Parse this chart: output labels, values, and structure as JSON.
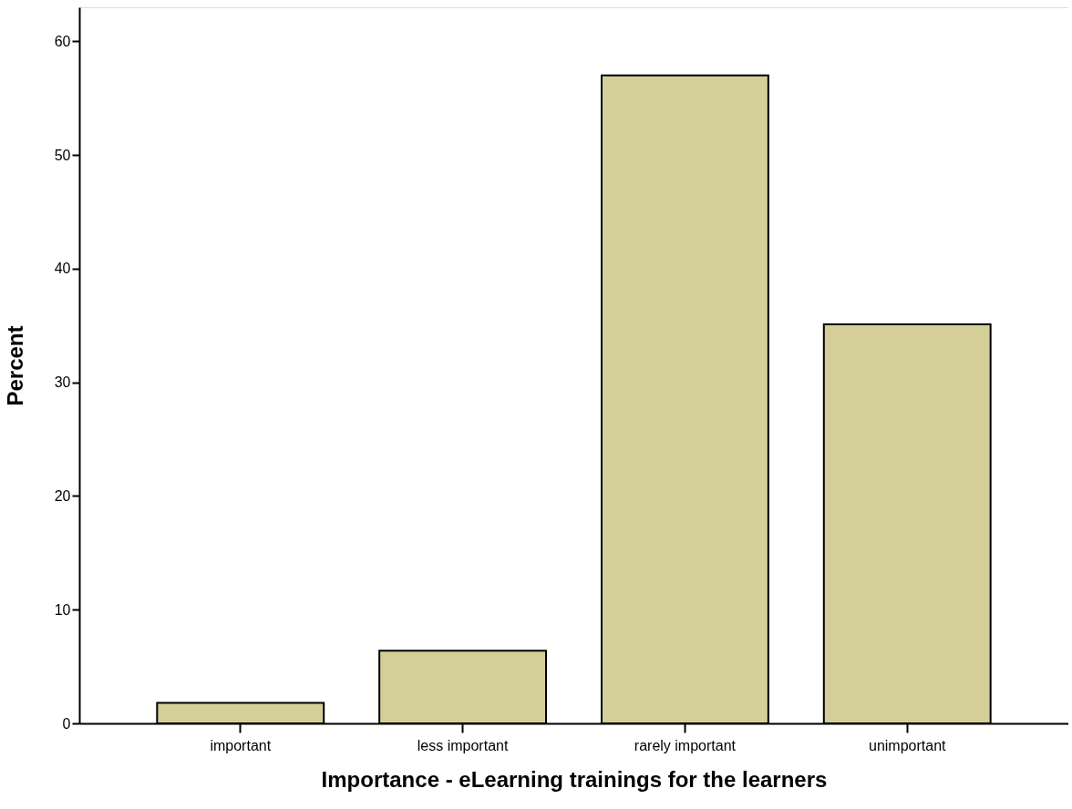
{
  "chart_data": {
    "type": "bar",
    "xlabel": "Importance - eLearning trainings for the learners",
    "ylabel": "Percent",
    "categories": [
      "important",
      "less important",
      "rarely important",
      "unimportant"
    ],
    "values": [
      1.8,
      6.4,
      57.0,
      35.1
    ],
    "color": "#d4ce98",
    "ylim": [
      0,
      63
    ],
    "yticks": [
      0,
      10,
      20,
      30,
      40,
      50,
      60
    ],
    "grid": false
  }
}
